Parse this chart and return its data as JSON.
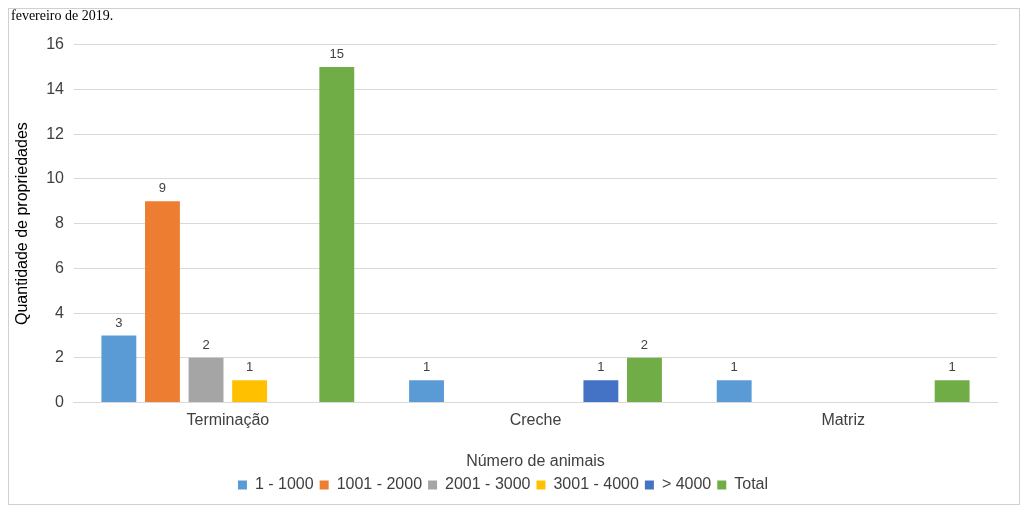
{
  "chart_data": {
    "type": "bar",
    "annotations": [
      "fevereiro de 2019."
    ],
    "xlabel": "Número de animais",
    "ylabel": "Quantidade de propriedades",
    "categories": [
      "Terminação",
      "Creche",
      "Matriz"
    ],
    "series": [
      {
        "name": "1 - 1000",
        "color": "#5b9bd5",
        "values": [
          3,
          1,
          1
        ]
      },
      {
        "name": "1001 - 2000",
        "color": "#ed7d31",
        "values": [
          9,
          null,
          null
        ]
      },
      {
        "name": "2001 - 3000",
        "color": "#a5a5a5",
        "values": [
          2,
          null,
          null
        ]
      },
      {
        "name": "3001 - 4000",
        "color": "#ffc000",
        "values": [
          1,
          null,
          null
        ]
      },
      {
        "name": "> 4000",
        "color": "#4472c4",
        "values": [
          null,
          1,
          null
        ]
      },
      {
        "name": "Total",
        "color": "#70ad47",
        "values": [
          15,
          2,
          1
        ]
      }
    ],
    "ylim": [
      0,
      16
    ],
    "yticks": [
      0,
      2,
      4,
      6,
      8,
      10,
      12,
      14,
      16
    ],
    "grid": "y",
    "legend": "bottom",
    "data_labels": true
  }
}
